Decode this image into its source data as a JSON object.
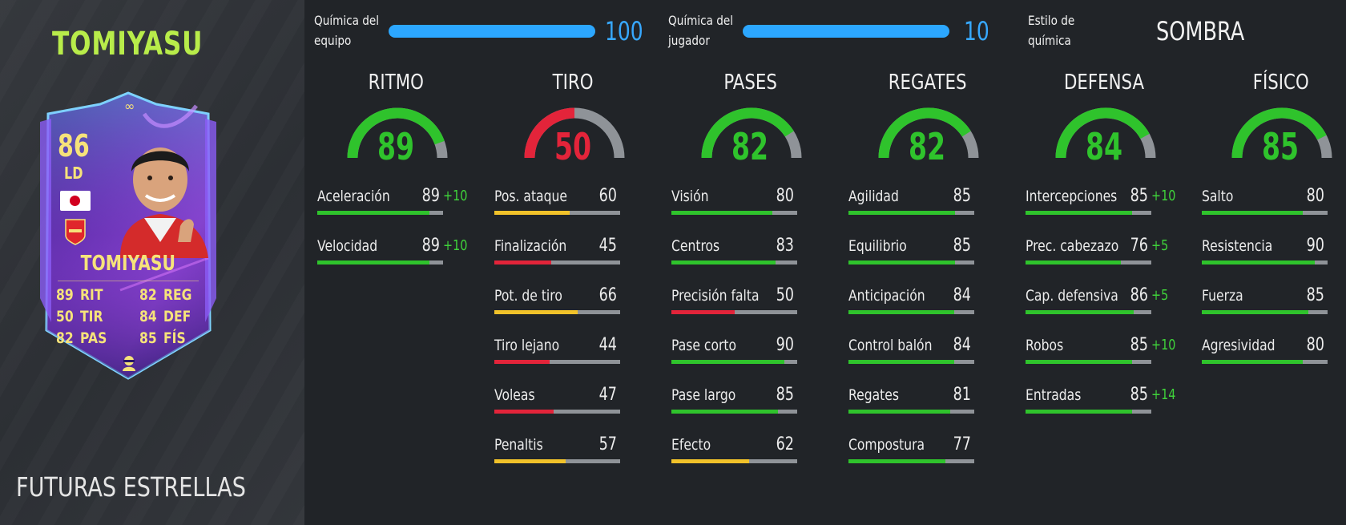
{
  "player": {
    "title": "TOMIYASU",
    "program": "FUTURAS ESTRELLAS"
  },
  "card": {
    "rating": "86",
    "position": "LD",
    "name": "TOMIYASU",
    "stats": [
      {
        "value": "89",
        "label": "RIT"
      },
      {
        "value": "50",
        "label": "TIR"
      },
      {
        "value": "82",
        "label": "PAS"
      },
      {
        "value": "82",
        "label": "REG"
      },
      {
        "value": "84",
        "label": "DEF"
      },
      {
        "value": "85",
        "label": "FÍS"
      }
    ],
    "nation_icon": "japan-flag-icon",
    "club_icon": "arsenal-crest-icon",
    "chem_style_icon": "shadow-chemistry-icon"
  },
  "chemistry": {
    "team_label_line1": "Química del",
    "team_label_line2": "equipo",
    "team_value": "100",
    "team_fraction": 1.0,
    "player_label_line1": "Química del",
    "player_label_line2": "jugador",
    "player_value": "10",
    "player_fraction": 1.0,
    "style_label_line1": "Estilo de",
    "style_label_line2": "química",
    "style_value": "SOMBRA"
  },
  "colors": {
    "green": "#2fc32c",
    "red": "#e3243a",
    "yellow": "#f1c22a",
    "gray": "#8f9398",
    "accent_blue": "#2ca7ff",
    "title_green": "#b8ec4a"
  },
  "categories": [
    {
      "title": "RITMO",
      "value": 89,
      "color": "green",
      "subs": [
        {
          "label": "Aceleración",
          "value": 89,
          "boost": "+10",
          "color": "green"
        },
        {
          "label": "Velocidad",
          "value": 89,
          "boost": "+10",
          "color": "green"
        }
      ]
    },
    {
      "title": "TIRO",
      "value": 50,
      "color": "red",
      "subs": [
        {
          "label": "Pos. ataque",
          "value": 60,
          "boost": "",
          "color": "yellow"
        },
        {
          "label": "Finalización",
          "value": 45,
          "boost": "",
          "color": "red"
        },
        {
          "label": "Pot. de tiro",
          "value": 66,
          "boost": "",
          "color": "yellow"
        },
        {
          "label": "Tiro lejano",
          "value": 44,
          "boost": "",
          "color": "red"
        },
        {
          "label": "Voleas",
          "value": 47,
          "boost": "",
          "color": "red"
        },
        {
          "label": "Penaltis",
          "value": 57,
          "boost": "",
          "color": "yellow"
        }
      ]
    },
    {
      "title": "PASES",
      "value": 82,
      "color": "green",
      "subs": [
        {
          "label": "Visión",
          "value": 80,
          "boost": "",
          "color": "green"
        },
        {
          "label": "Centros",
          "value": 83,
          "boost": "",
          "color": "green"
        },
        {
          "label": "Precisión falta",
          "value": 50,
          "boost": "",
          "color": "red"
        },
        {
          "label": "Pase corto",
          "value": 90,
          "boost": "",
          "color": "green"
        },
        {
          "label": "Pase largo",
          "value": 85,
          "boost": "",
          "color": "green"
        },
        {
          "label": "Efecto",
          "value": 62,
          "boost": "",
          "color": "yellow"
        }
      ]
    },
    {
      "title": "REGATES",
      "value": 82,
      "color": "green",
      "subs": [
        {
          "label": "Agilidad",
          "value": 85,
          "boost": "",
          "color": "green"
        },
        {
          "label": "Equilibrio",
          "value": 85,
          "boost": "",
          "color": "green"
        },
        {
          "label": "Anticipación",
          "value": 84,
          "boost": "",
          "color": "green"
        },
        {
          "label": "Control balón",
          "value": 84,
          "boost": "",
          "color": "green"
        },
        {
          "label": "Regates",
          "value": 81,
          "boost": "",
          "color": "green"
        },
        {
          "label": "Compostura",
          "value": 77,
          "boost": "",
          "color": "green"
        }
      ]
    },
    {
      "title": "DEFENSA",
      "value": 84,
      "color": "green",
      "subs": [
        {
          "label": "Intercepciones",
          "value": 85,
          "boost": "+10",
          "color": "green"
        },
        {
          "label": "Prec. cabezazo",
          "value": 76,
          "boost": "+5",
          "color": "green"
        },
        {
          "label": "Cap. defensiva",
          "value": 86,
          "boost": "+5",
          "color": "green"
        },
        {
          "label": "Robos",
          "value": 85,
          "boost": "+10",
          "color": "green"
        },
        {
          "label": "Entradas",
          "value": 85,
          "boost": "+14",
          "color": "green"
        }
      ]
    },
    {
      "title": "FÍSICO",
      "value": 85,
      "color": "green",
      "subs": [
        {
          "label": "Salto",
          "value": 80,
          "boost": "",
          "color": "green"
        },
        {
          "label": "Resistencia",
          "value": 90,
          "boost": "",
          "color": "green"
        },
        {
          "label": "Fuerza",
          "value": 85,
          "boost": "",
          "color": "green"
        },
        {
          "label": "Agresividad",
          "value": 80,
          "boost": "",
          "color": "green"
        }
      ]
    }
  ]
}
